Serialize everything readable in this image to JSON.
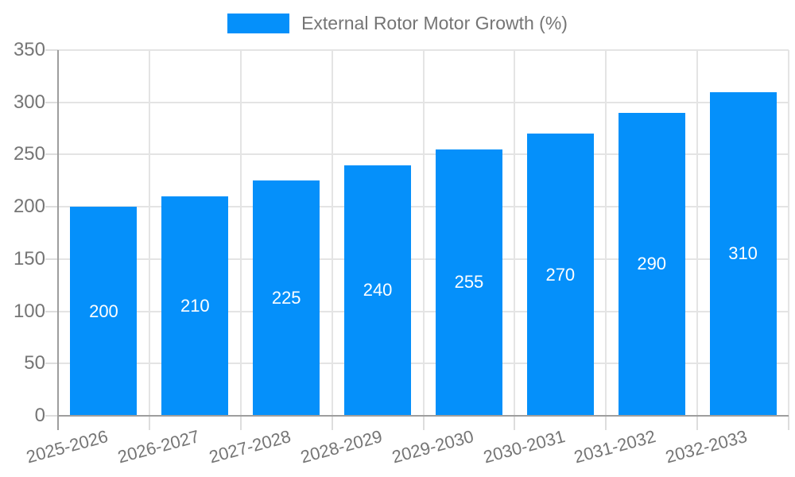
{
  "chart_data": {
    "type": "bar",
    "title": "External Rotor Motor Growth (%)",
    "categories": [
      "2025-2026",
      "2026-2027",
      "2027-2028",
      "2028-2029",
      "2029-2030",
      "2030-2031",
      "2031-2032",
      "2032-2033"
    ],
    "values": [
      200,
      210,
      225,
      240,
      255,
      270,
      290,
      310
    ],
    "series": [
      {
        "name": "External Rotor Motor Growth (%)",
        "values": [
          200,
          210,
          225,
          240,
          255,
          270,
          290,
          310
        ]
      }
    ],
    "xlabel": "",
    "ylabel": "",
    "ylim": [
      0,
      350
    ],
    "yticks": [
      0,
      50,
      100,
      150,
      200,
      250,
      300,
      350
    ],
    "grid": true,
    "legend_position": "top-center",
    "bar_value_labels_shown": true,
    "x_label_rotation_deg": -15
  },
  "colors": {
    "bar": "#0590fa",
    "bar_label_text": "#ffffff",
    "grid_line": "#e4e4e4",
    "tick_mark": "#dddddd",
    "axis_line": "#9e9e9e",
    "tick_text": "#757575",
    "legend_text": "#757575",
    "background": "#ffffff"
  }
}
